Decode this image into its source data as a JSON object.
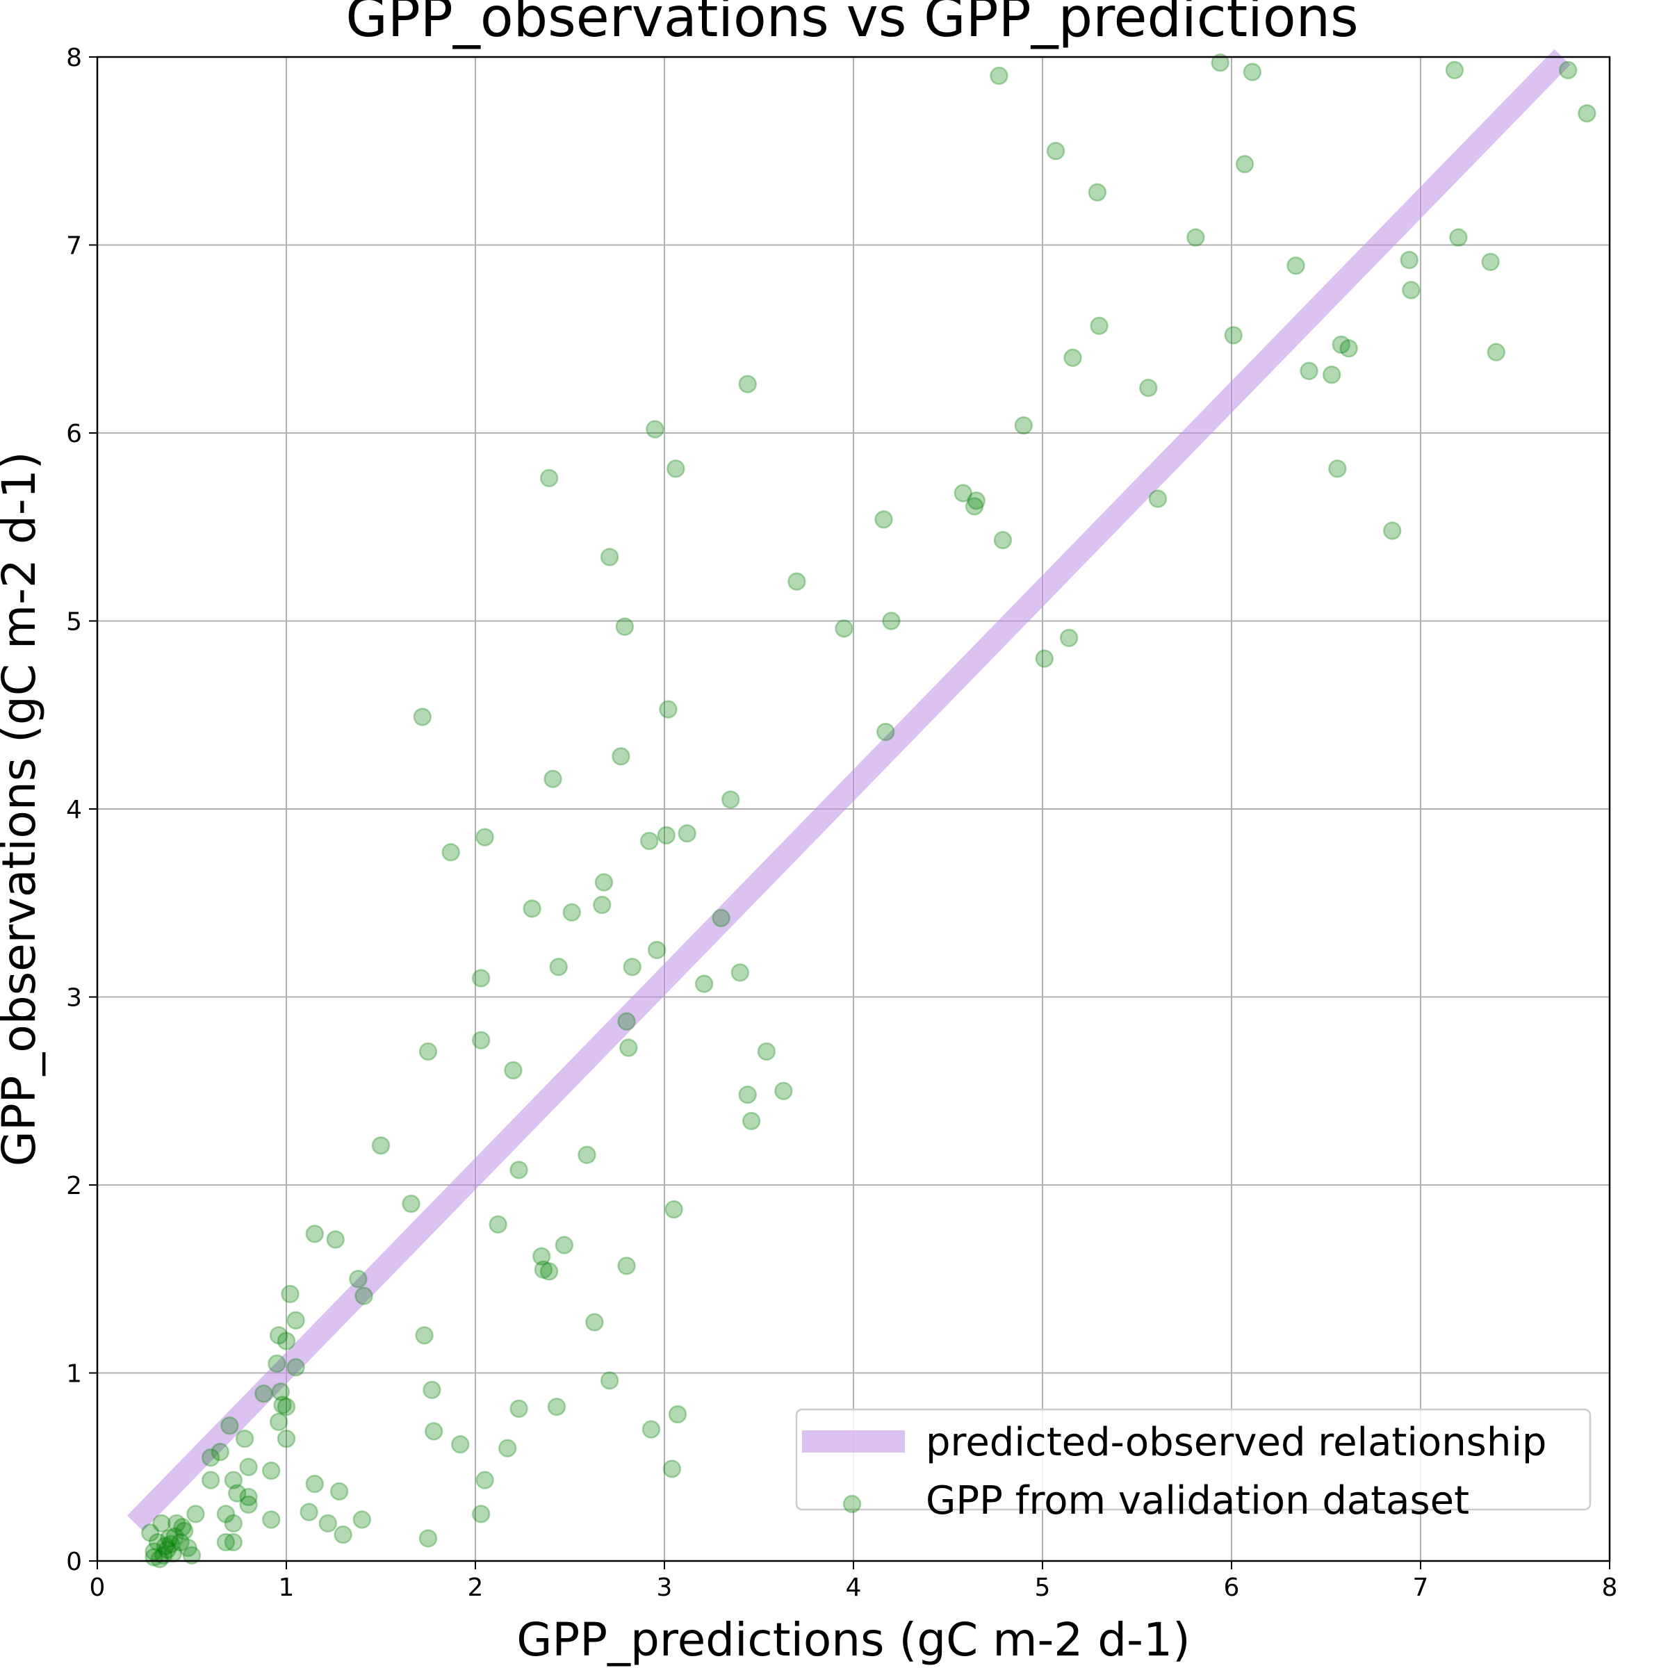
{
  "chart_data": {
    "type": "scatter",
    "title": "GPP_observations vs GPP_predictions",
    "xlabel": "GPP_predictions (gC m-2 d-1)",
    "ylabel": "GPP_observations (gC m-2 d-1)",
    "xlim": [
      0,
      8
    ],
    "ylim": [
      0,
      8
    ],
    "xticks": [
      "0",
      "1",
      "2",
      "3",
      "4",
      "5",
      "6",
      "7",
      "8"
    ],
    "yticks": [
      "0",
      "1",
      "2",
      "3",
      "4",
      "5",
      "6",
      "7",
      "8"
    ],
    "grid": true,
    "legend_position": "bottom-right",
    "colors": {
      "scatter": "#008000",
      "line": "#bf8fe6"
    },
    "line": {
      "name": "predicted-observed relationship",
      "x": [
        0.2,
        7.75
      ],
      "y": [
        0.2,
        8.0
      ]
    },
    "series": [
      {
        "name": "GPP from validation dataset",
        "points": [
          [
            0.28,
            0.15
          ],
          [
            0.3,
            0.05
          ],
          [
            0.32,
            0.1
          ],
          [
            0.34,
            0.2
          ],
          [
            0.35,
            0.03
          ],
          [
            0.36,
            0.08
          ],
          [
            0.38,
            0.12
          ],
          [
            0.4,
            0.04
          ],
          [
            0.42,
            0.2
          ],
          [
            0.44,
            0.1
          ],
          [
            0.46,
            0.16
          ],
          [
            0.48,
            0.07
          ],
          [
            0.5,
            0.03
          ],
          [
            0.3,
            0.02
          ],
          [
            0.33,
            0.01
          ],
          [
            0.37,
            0.06
          ],
          [
            0.39,
            0.09
          ],
          [
            0.41,
            0.13
          ],
          [
            0.45,
            0.18
          ],
          [
            0.52,
            0.25
          ],
          [
            0.6,
            0.55
          ],
          [
            0.65,
            0.58
          ],
          [
            0.6,
            0.43
          ],
          [
            0.7,
            0.72
          ],
          [
            0.68,
            0.25
          ],
          [
            0.72,
            0.43
          ],
          [
            0.74,
            0.36
          ],
          [
            0.78,
            0.65
          ],
          [
            0.8,
            0.5
          ],
          [
            0.8,
            0.34
          ],
          [
            0.8,
            0.3
          ],
          [
            0.72,
            0.2
          ],
          [
            0.68,
            0.1
          ],
          [
            0.72,
            0.1
          ],
          [
            0.88,
            0.89
          ],
          [
            0.92,
            0.48
          ],
          [
            0.92,
            0.22
          ],
          [
            0.95,
            1.05
          ],
          [
            0.96,
            1.2
          ],
          [
            0.96,
            0.74
          ],
          [
            0.97,
            0.9
          ],
          [
            0.98,
            0.83
          ],
          [
            1.0,
            1.17
          ],
          [
            1.0,
            0.82
          ],
          [
            1.0,
            0.65
          ],
          [
            1.02,
            1.42
          ],
          [
            1.05,
            1.28
          ],
          [
            1.05,
            1.03
          ],
          [
            1.12,
            0.26
          ],
          [
            1.15,
            1.74
          ],
          [
            1.15,
            0.41
          ],
          [
            1.22,
            0.2
          ],
          [
            1.26,
            1.71
          ],
          [
            1.28,
            0.37
          ],
          [
            1.3,
            0.14
          ],
          [
            1.38,
            1.5
          ],
          [
            1.4,
            0.22
          ],
          [
            1.41,
            1.41
          ],
          [
            1.5,
            2.21
          ],
          [
            1.66,
            1.9
          ],
          [
            1.72,
            4.49
          ],
          [
            1.73,
            1.2
          ],
          [
            1.75,
            2.71
          ],
          [
            1.75,
            0.12
          ],
          [
            1.77,
            0.91
          ],
          [
            1.78,
            0.69
          ],
          [
            1.87,
            3.77
          ],
          [
            1.92,
            0.62
          ],
          [
            2.03,
            3.1
          ],
          [
            2.03,
            2.77
          ],
          [
            2.03,
            0.25
          ],
          [
            2.05,
            3.85
          ],
          [
            2.05,
            0.43
          ],
          [
            2.12,
            1.79
          ],
          [
            2.17,
            0.6
          ],
          [
            2.2,
            2.61
          ],
          [
            2.23,
            2.08
          ],
          [
            2.23,
            0.81
          ],
          [
            2.3,
            3.47
          ],
          [
            2.35,
            1.62
          ],
          [
            2.36,
            1.55
          ],
          [
            2.39,
            5.76
          ],
          [
            2.39,
            1.54
          ],
          [
            2.41,
            4.16
          ],
          [
            2.43,
            0.82
          ],
          [
            2.44,
            3.16
          ],
          [
            2.47,
            1.68
          ],
          [
            2.51,
            3.45
          ],
          [
            2.59,
            2.16
          ],
          [
            2.63,
            1.27
          ],
          [
            2.68,
            3.61
          ],
          [
            2.67,
            3.49
          ],
          [
            2.71,
            5.34
          ],
          [
            2.71,
            0.96
          ],
          [
            2.77,
            4.28
          ],
          [
            2.79,
            4.97
          ],
          [
            2.8,
            2.87
          ],
          [
            2.8,
            1.57
          ],
          [
            2.81,
            2.73
          ],
          [
            2.83,
            3.16
          ],
          [
            2.92,
            3.83
          ],
          [
            2.93,
            0.7
          ],
          [
            2.95,
            6.02
          ],
          [
            2.96,
            3.25
          ],
          [
            3.01,
            3.86
          ],
          [
            3.02,
            4.53
          ],
          [
            3.04,
            0.49
          ],
          [
            3.05,
            1.87
          ],
          [
            3.06,
            5.81
          ],
          [
            3.07,
            0.78
          ],
          [
            3.12,
            3.87
          ],
          [
            3.21,
            3.07
          ],
          [
            3.3,
            3.42
          ],
          [
            3.35,
            4.05
          ],
          [
            3.4,
            3.13
          ],
          [
            3.44,
            6.26
          ],
          [
            3.44,
            2.48
          ],
          [
            3.46,
            2.34
          ],
          [
            3.54,
            2.71
          ],
          [
            3.63,
            2.5
          ],
          [
            3.7,
            5.21
          ],
          [
            3.95,
            4.96
          ],
          [
            4.16,
            5.54
          ],
          [
            4.17,
            4.41
          ],
          [
            4.2,
            5.0
          ],
          [
            4.58,
            5.68
          ],
          [
            4.64,
            5.61
          ],
          [
            4.65,
            5.64
          ],
          [
            4.77,
            7.9
          ],
          [
            4.79,
            5.43
          ],
          [
            4.9,
            6.04
          ],
          [
            5.01,
            4.8
          ],
          [
            5.07,
            7.5
          ],
          [
            5.14,
            4.91
          ],
          [
            5.16,
            6.4
          ],
          [
            5.29,
            7.28
          ],
          [
            5.3,
            6.57
          ],
          [
            5.56,
            6.24
          ],
          [
            5.61,
            5.65
          ],
          [
            5.81,
            7.04
          ],
          [
            5.94,
            7.97
          ],
          [
            6.01,
            6.52
          ],
          [
            6.07,
            7.43
          ],
          [
            6.11,
            7.92
          ],
          [
            6.34,
            6.89
          ],
          [
            6.41,
            6.33
          ],
          [
            6.53,
            6.31
          ],
          [
            6.56,
            5.81
          ],
          [
            6.58,
            6.47
          ],
          [
            6.62,
            6.45
          ],
          [
            6.85,
            5.48
          ],
          [
            6.94,
            6.92
          ],
          [
            6.95,
            6.76
          ],
          [
            7.18,
            7.93
          ],
          [
            7.2,
            7.04
          ],
          [
            7.37,
            6.91
          ],
          [
            7.4,
            6.43
          ],
          [
            7.78,
            7.93
          ],
          [
            7.88,
            7.7
          ]
        ]
      }
    ]
  }
}
